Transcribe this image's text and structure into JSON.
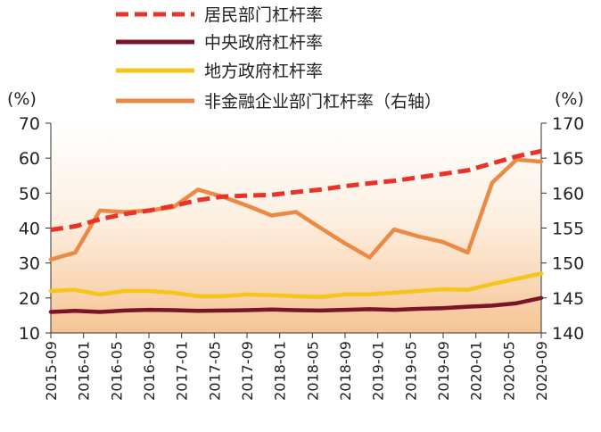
{
  "chart_data": {
    "type": "line",
    "title": "",
    "left_axis": {
      "unit": "(%)",
      "ylim": [
        10,
        70
      ],
      "ticks": [
        10,
        20,
        30,
        40,
        50,
        60,
        70
      ]
    },
    "right_axis": {
      "unit": "(%)",
      "ylim": [
        140,
        170
      ],
      "ticks": [
        140,
        145,
        150,
        155,
        160,
        165,
        170
      ]
    },
    "x": [
      "2015-09",
      "2015-12",
      "2016-03",
      "2016-06",
      "2016-09",
      "2016-12",
      "2017-03",
      "2017-06",
      "2017-09",
      "2017-12",
      "2018-03",
      "2018-06",
      "2018-09",
      "2018-12",
      "2019-03",
      "2019-06",
      "2019-09",
      "2019-12",
      "2020-03",
      "2020-06",
      "2020-09"
    ],
    "x_tick_labels": [
      "2015-09",
      "2016-01",
      "2016-05",
      "2016-09",
      "2017-01",
      "2017-05",
      "2017-09",
      "2018-01",
      "2018-05",
      "2018-09",
      "2019-01",
      "2019-05",
      "2019-09",
      "2020-01",
      "2020-05",
      "2020-09"
    ],
    "series": [
      {
        "name": "居民部门杠杆率",
        "axis": "left",
        "color": "#e8332a",
        "style": "dashed",
        "values": [
          39.5,
          40.5,
          42.5,
          44.0,
          45.0,
          46.3,
          48.0,
          49.0,
          49.3,
          49.5,
          50.3,
          51.0,
          52.0,
          52.8,
          53.5,
          54.5,
          55.5,
          56.5,
          58.5,
          60.5,
          62.0
        ]
      },
      {
        "name": "中央政府杠杆率",
        "axis": "left",
        "color": "#7a1428",
        "style": "solid",
        "values": [
          16.0,
          16.3,
          16.0,
          16.4,
          16.6,
          16.5,
          16.3,
          16.4,
          16.5,
          16.7,
          16.5,
          16.4,
          16.6,
          16.8,
          16.6,
          16.9,
          17.1,
          17.5,
          17.8,
          18.5,
          20.0
        ]
      },
      {
        "name": "地方政府杠杆率",
        "axis": "left",
        "color": "#f4c51a",
        "style": "solid",
        "values": [
          22.0,
          22.3,
          21.0,
          22.0,
          22.0,
          21.5,
          20.5,
          20.5,
          21.0,
          20.8,
          20.5,
          20.3,
          21.0,
          21.0,
          21.5,
          22.0,
          22.5,
          22.3,
          24.0,
          25.5,
          27.0
        ]
      },
      {
        "name": "非金融企业部门杠杆率（右轴）",
        "axis": "right",
        "color": "#ec8a45",
        "style": "solid",
        "values": [
          150.5,
          151.5,
          157.5,
          157.3,
          157.5,
          158.0,
          160.5,
          159.5,
          158.2,
          156.8,
          157.3,
          155.0,
          152.8,
          150.8,
          154.8,
          153.8,
          153.0,
          151.5,
          161.5,
          164.8,
          164.5
        ]
      }
    ],
    "legend_position": "top-left"
  }
}
